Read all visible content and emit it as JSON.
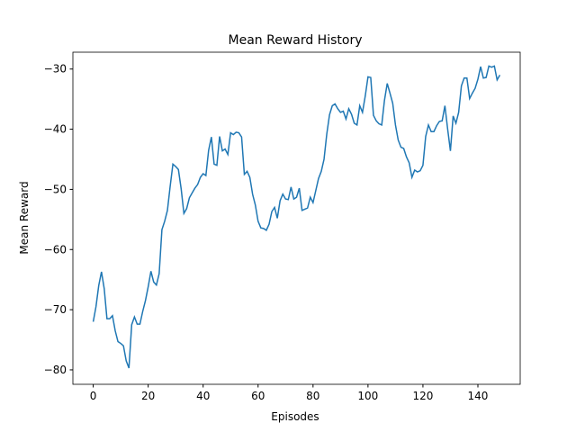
{
  "chart_data": {
    "type": "line",
    "title": "Mean Reward History",
    "x_label": "Episodes",
    "y_label": "Mean Reward",
    "x": [
      0,
      1,
      2,
      3,
      4,
      5,
      6,
      7,
      8,
      9,
      10,
      11,
      12,
      13,
      14,
      15,
      16,
      17,
      18,
      19,
      20,
      21,
      22,
      23,
      24,
      25,
      26,
      27,
      28,
      29,
      30,
      31,
      32,
      33,
      34,
      35,
      36,
      37,
      38,
      39,
      40,
      41,
      42,
      43,
      44,
      45,
      46,
      47,
      48,
      49,
      50,
      51,
      52,
      53,
      54,
      55,
      56,
      57,
      58,
      59,
      60,
      61,
      62,
      63,
      64,
      65,
      66,
      67,
      68,
      69,
      70,
      71,
      72,
      73,
      74,
      75,
      76,
      77,
      78,
      79,
      80,
      81,
      82,
      83,
      84,
      85,
      86,
      87,
      88,
      89,
      90,
      91,
      92,
      93,
      94,
      95,
      96,
      97,
      98,
      99,
      100,
      101,
      102,
      103,
      104,
      105,
      106,
      107,
      108,
      109,
      110,
      111,
      112,
      113,
      114,
      115,
      116,
      117,
      118,
      119,
      120,
      121,
      122,
      123,
      124,
      125,
      126,
      127,
      128,
      129,
      130,
      131,
      132,
      133,
      134,
      135,
      136,
      137,
      138,
      139,
      140,
      141,
      142,
      143,
      144,
      145,
      146,
      147,
      148
    ],
    "series": [
      {
        "color": "#1f77b4",
        "values": [
          -72,
          -69.5,
          -66,
          -63.7,
          -66.5,
          -71.5,
          -71.5,
          -71,
          -73.5,
          -75.3,
          -75.6,
          -76,
          -78.5,
          -79.7,
          -72.5,
          -71.2,
          -72.4,
          -72.4,
          -70.3,
          -68.5,
          -66.2,
          -63.6,
          -65.4,
          -65.9,
          -64,
          -56.7,
          -55.3,
          -53.5,
          -49.5,
          -45.8,
          -46.2,
          -46.7,
          -49.9,
          -54,
          -53.2,
          -51.4,
          -50.6,
          -49.8,
          -49.2,
          -48,
          -47.4,
          -47.7,
          -43.5,
          -41.3,
          -45.8,
          -46,
          -41.2,
          -43.6,
          -43.3,
          -44.2,
          -40.6,
          -40.9,
          -40.5,
          -40.6,
          -41.3,
          -47.5,
          -47,
          -48,
          -50.8,
          -52.6,
          -55.3,
          -56.4,
          -56.5,
          -56.8,
          -55.8,
          -53.7,
          -53,
          -54.8,
          -51.9,
          -50.8,
          -51.6,
          -51.7,
          -49.6,
          -51.6,
          -51.3,
          -49.8,
          -53.5,
          -53.3,
          -53.1,
          -51.3,
          -52.2,
          -50.2,
          -48.2,
          -47,
          -45,
          -40.8,
          -37.6,
          -36.1,
          -35.8,
          -36.6,
          -37.2,
          -37,
          -38.3,
          -36.6,
          -37.5,
          -39,
          -39.3,
          -36.1,
          -37.2,
          -34.5,
          -31.3,
          -31.4,
          -37.7,
          -38.6,
          -39.1,
          -39.3,
          -35.2,
          -32.4,
          -34,
          -35.7,
          -39.3,
          -41.8,
          -43,
          -43.2,
          -44.6,
          -45.6,
          -48,
          -46.8,
          -47.1,
          -46.9,
          -46,
          -41.2,
          -39.3,
          -40.4,
          -40.4,
          -39.4,
          -38.7,
          -38.6,
          -36.1,
          -40,
          -43.6,
          -37.8,
          -39,
          -37.2,
          -32.8,
          -31.5,
          -31.5,
          -34.9,
          -34,
          -33.2,
          -31.7,
          -29.6,
          -31.5,
          -31.4,
          -29.5,
          -29.7,
          -29.5,
          -31.8,
          -31
        ]
      }
    ],
    "xlim": [
      -7.4,
      155.4
    ],
    "ylim": [
      -82.4,
      -27.2
    ],
    "xticks": [
      0,
      20,
      40,
      60,
      80,
      100,
      120,
      140
    ],
    "yticks": [
      {
        "value": -80,
        "label": "−80"
      },
      {
        "value": -70,
        "label": "−70"
      },
      {
        "value": -60,
        "label": "−60"
      },
      {
        "value": -50,
        "label": "−50"
      },
      {
        "value": -40,
        "label": "−40"
      },
      {
        "value": -30,
        "label": "−30"
      }
    ]
  }
}
